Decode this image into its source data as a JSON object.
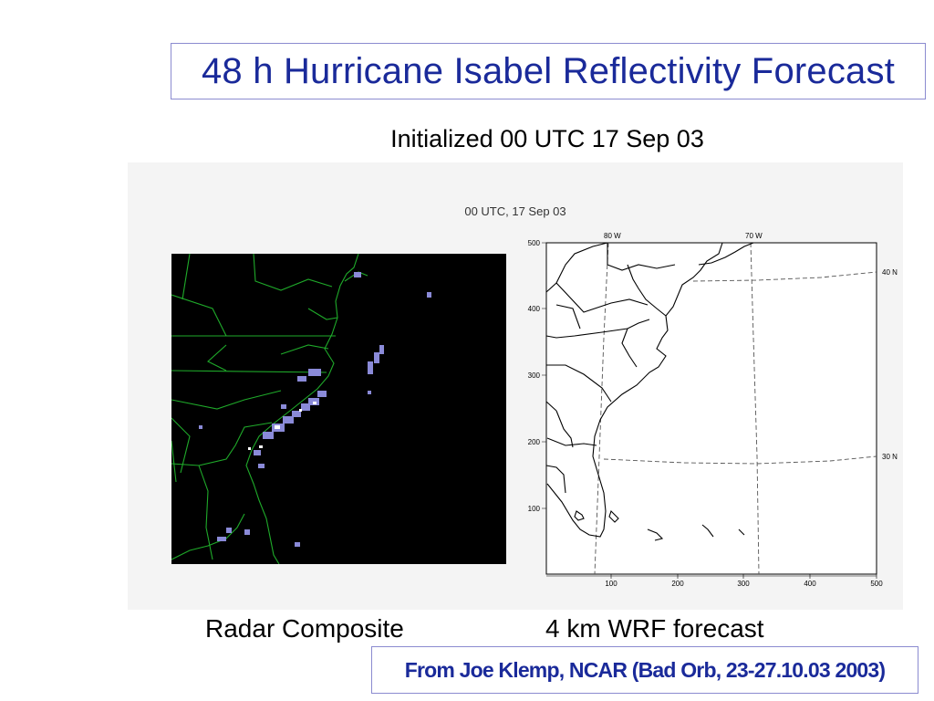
{
  "slide": {
    "title": "48 h Hurricane Isabel Reflectivity Forecast",
    "subtitle": "Initialized 00 UTC 17 Sep 03",
    "figure_caption": "00 UTC, 17 Sep 03",
    "left_label": "Radar Composite",
    "right_label": "4 km WRF forecast",
    "credit": "From Joe Klemp, NCAR (Bad Orb, 23-27.10.03 2003)"
  },
  "forecast_map": {
    "x_ticks": [
      "100",
      "200",
      "300",
      "400",
      "500"
    ],
    "y_ticks": [
      "100",
      "200",
      "300",
      "400",
      "500"
    ],
    "lon_labels": [
      "80 W",
      "70 W"
    ],
    "lat_labels": [
      "40 N",
      "30 N"
    ]
  },
  "colors": {
    "title": "#1a2a9a",
    "box_border": "#8b8bd0",
    "radar_background": "#000000",
    "radar_boundaries": "#1faa2a",
    "radar_echo": "#8a8ad8"
  }
}
